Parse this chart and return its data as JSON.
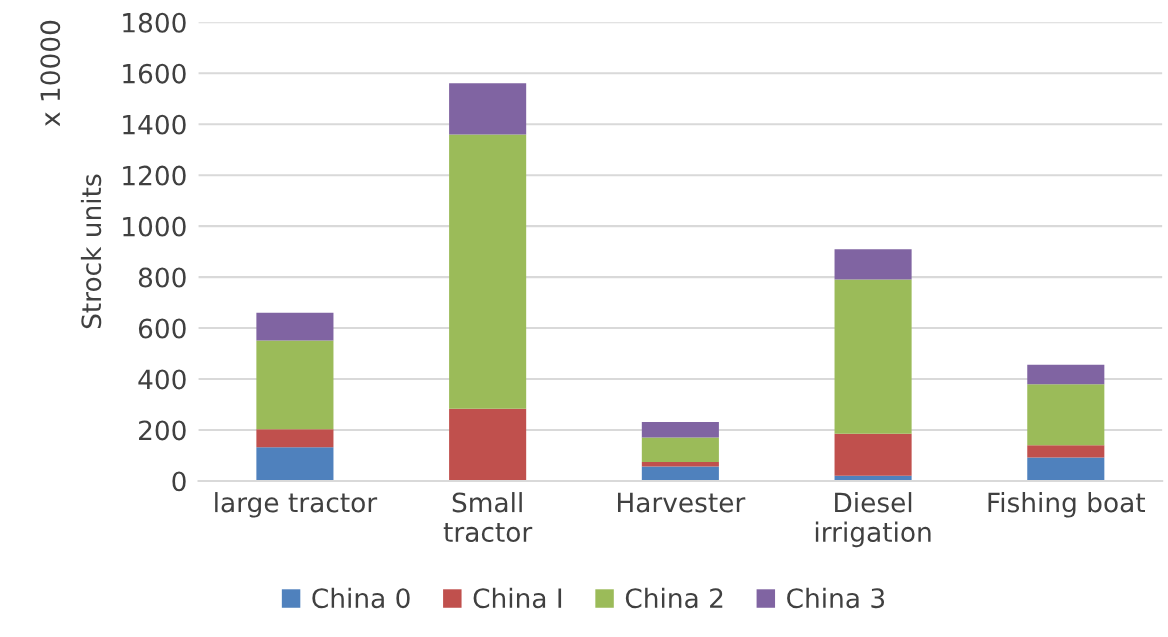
{
  "chart_data": {
    "type": "bar",
    "stacked": true,
    "categories": [
      "large tractor",
      "Small\ntractor",
      "Harvester",
      "Diesel\nirrigation",
      "Fishing boat"
    ],
    "series": [
      {
        "name": "China 0",
        "color": "#4f81bd",
        "values": [
          132,
          0,
          57,
          20,
          92
        ]
      },
      {
        "name": "China I",
        "color": "#c0504d",
        "values": [
          71,
          283,
          17,
          165,
          48
        ]
      },
      {
        "name": "China 2",
        "color": "#9bbb59",
        "values": [
          348,
          1077,
          96,
          606,
          239
        ]
      },
      {
        "name": "China 3",
        "color": "#8064a2",
        "values": [
          109,
          201,
          61,
          118,
          77
        ]
      }
    ],
    "ylabel": "Strock units",
    "annotations": [
      "x 10000"
    ],
    "ylim": [
      0,
      1800
    ],
    "yticks": [
      0,
      200,
      400,
      600,
      800,
      1000,
      1200,
      1400,
      1600,
      1800
    ],
    "grid": "y",
    "legend": "bottom"
  }
}
